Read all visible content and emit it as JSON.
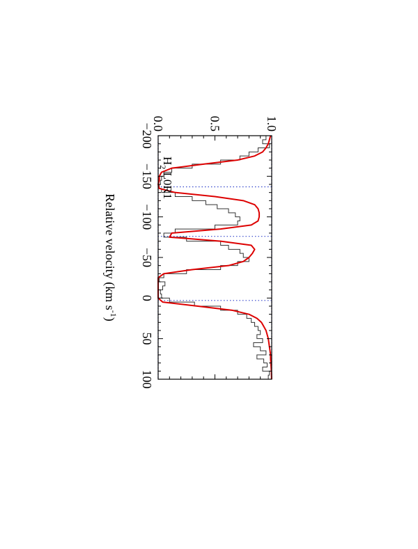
{
  "chart_data": {
    "type": "line",
    "orientation": "rotated 90 degrees clockwise",
    "xlabel": "Relative velocity (km s",
    "xlabel_sup": "-1",
    "xlabel_close": ")",
    "xlim": [
      -200,
      100
    ],
    "ylim": [
      0.0,
      1.0
    ],
    "x_ticks": [
      -200,
      -150,
      -100,
      -50,
      0,
      50,
      100
    ],
    "x_tick_labels": [
      "−200",
      "−150",
      "−100",
      "−50",
      "0",
      "50",
      "100"
    ],
    "y_ticks": [
      0.0,
      0.5,
      1.0
    ],
    "y_tick_labels": [
      "0.0",
      "0.5",
      "1.0"
    ],
    "annotation": {
      "main": "H",
      "sub": "2",
      "rest": " L0R1"
    },
    "component_velocities": [
      -137,
      -76,
      3
    ],
    "reference_levels": [
      0.0,
      1.0
    ],
    "colors": {
      "data": "#333333",
      "model": "#dd0000",
      "guides": "#3344cc",
      "axes": "#000000"
    },
    "series": [
      {
        "style": "histogram",
        "x": [
          -200,
          -195,
          -190,
          -185,
          -180,
          -175,
          -170,
          -165,
          -160,
          -155,
          -150,
          -145,
          -140,
          -135,
          -130,
          -125,
          -120,
          -115,
          -110,
          -105,
          -100,
          -95,
          -90,
          -85,
          -80,
          -75,
          -70,
          -65,
          -60,
          -55,
          -50,
          -45,
          -40,
          -35,
          -30,
          -25,
          -20,
          -15,
          -10,
          -5,
          0,
          5,
          10,
          15,
          20,
          25,
          30,
          35,
          40,
          45,
          50,
          55,
          60,
          65,
          70,
          75,
          80,
          85,
          90,
          95
        ],
        "y": [
          0.95,
          0.92,
          0.98,
          0.88,
          0.8,
          0.72,
          0.55,
          0.3,
          0.12,
          0.05,
          0.03,
          0.02,
          0.01,
          0.03,
          0.15,
          0.3,
          0.42,
          0.52,
          0.62,
          0.68,
          0.72,
          0.7,
          0.5,
          0.15,
          0.05,
          0.25,
          0.55,
          0.62,
          0.72,
          0.75,
          0.8,
          0.7,
          0.55,
          0.25,
          0.05,
          0.01,
          0.06,
          0.04,
          0.02,
          0.03,
          0.1,
          0.32,
          0.55,
          0.7,
          0.78,
          0.82,
          0.85,
          0.88,
          0.9,
          0.87,
          0.92,
          0.84,
          0.9,
          0.95,
          0.87,
          0.93,
          0.96,
          0.92,
          0.98,
          0.97
        ]
      },
      {
        "style": "line",
        "x": [
          -200,
          -195,
          -190,
          -185,
          -180,
          -175,
          -170,
          -165,
          -160,
          -155,
          -150,
          -145,
          -140,
          -135,
          -130,
          -125,
          -120,
          -115,
          -110,
          -105,
          -100,
          -95,
          -90,
          -85,
          -80,
          -75,
          -70,
          -65,
          -60,
          -55,
          -50,
          -45,
          -40,
          -35,
          -30,
          -25,
          -20,
          -15,
          -10,
          -5,
          0,
          5,
          10,
          15,
          20,
          25,
          30,
          35,
          40,
          45,
          50,
          55,
          60,
          65,
          70,
          75,
          80,
          85,
          90,
          95,
          100
        ],
        "y": [
          0.99,
          0.98,
          0.97,
          0.95,
          0.92,
          0.85,
          0.7,
          0.4,
          0.12,
          0.03,
          0.01,
          0.01,
          0.0,
          0.01,
          0.15,
          0.5,
          0.75,
          0.85,
          0.88,
          0.89,
          0.89,
          0.88,
          0.82,
          0.55,
          0.12,
          0.1,
          0.55,
          0.82,
          0.85,
          0.83,
          0.8,
          0.75,
          0.62,
          0.3,
          0.05,
          0.0,
          0.0,
          0.0,
          0.0,
          0.0,
          0.0,
          0.04,
          0.35,
          0.65,
          0.8,
          0.87,
          0.91,
          0.93,
          0.95,
          0.96,
          0.97,
          0.975,
          0.98,
          0.985,
          0.99,
          0.99,
          0.993,
          0.995,
          0.997,
          0.998,
          0.999
        ]
      }
    ]
  }
}
